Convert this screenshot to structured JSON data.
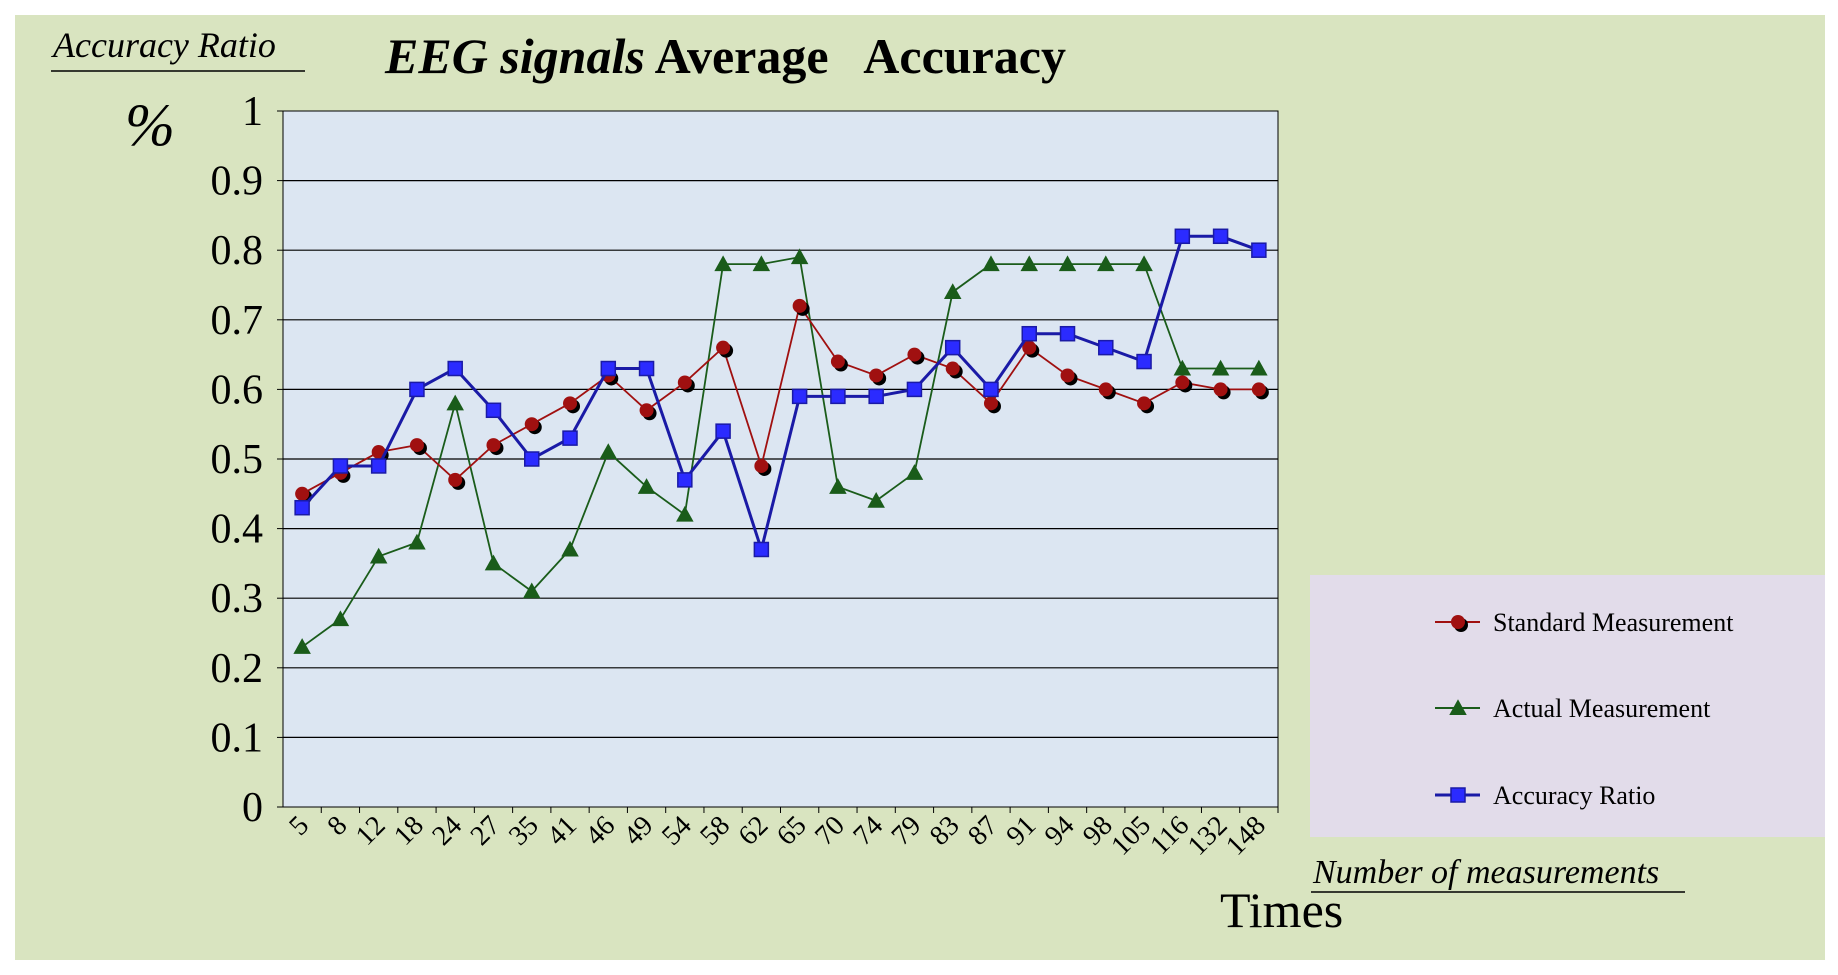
{
  "chart_data": {
    "type": "line",
    "title_italic": "EEG signals",
    "title_rest": " Average   Accuracy",
    "ylabel_top": "Accuracy Ratio",
    "yunit": "%",
    "xlabel_top": "Number of measurements",
    "xlabel_bottom": "Times",
    "ylim": [
      0,
      1
    ],
    "yticks": [
      "0",
      "0.1",
      "0.2",
      "0.3",
      "0.4",
      "0.5",
      "0.6",
      "0.7",
      "0.8",
      "0.9",
      "1"
    ],
    "grid": true,
    "legend_position": "right",
    "categories": [
      "5",
      "8",
      "12",
      "18",
      "24",
      "27",
      "35",
      "41",
      "46",
      "49",
      "54",
      "58",
      "62",
      "65",
      "70",
      "74",
      "79",
      "83",
      "87",
      "91",
      "94",
      "98",
      "105",
      "116",
      "132",
      "148"
    ],
    "series": [
      {
        "name": "Standard Measurement",
        "color": "#a01010",
        "marker": "circle",
        "values": [
          0.45,
          0.48,
          0.51,
          0.52,
          0.47,
          0.52,
          0.55,
          0.58,
          0.62,
          0.57,
          0.61,
          0.66,
          0.49,
          0.72,
          0.64,
          0.62,
          0.65,
          0.63,
          0.58,
          0.66,
          0.62,
          0.6,
          0.58,
          0.61,
          0.6,
          0.6
        ]
      },
      {
        "name": "Actual Measurement",
        "color": "#1a5c1a",
        "marker": "triangle",
        "values": [
          0.23,
          0.27,
          0.36,
          0.38,
          0.58,
          0.35,
          0.31,
          0.37,
          0.51,
          0.46,
          0.42,
          0.78,
          0.78,
          0.79,
          0.46,
          0.44,
          0.48,
          0.74,
          0.78,
          0.78,
          0.78,
          0.78,
          0.78,
          0.63,
          0.63,
          0.63
        ]
      },
      {
        "name": "Accuracy Ratio",
        "color": "#1a1aa6",
        "marker": "square",
        "values": [
          0.43,
          0.49,
          0.49,
          0.6,
          0.63,
          0.57,
          0.5,
          0.53,
          0.63,
          0.63,
          0.47,
          0.54,
          0.37,
          0.59,
          0.59,
          0.59,
          0.6,
          0.66,
          0.6,
          0.68,
          0.68,
          0.66,
          0.64,
          0.82,
          0.82,
          0.8
        ]
      }
    ],
    "colors": {
      "background": "#d9e4c0",
      "plot_area": "#dce6f2",
      "legend_box": "#e2dcea",
      "marker_fill": "#2b2bff"
    }
  }
}
